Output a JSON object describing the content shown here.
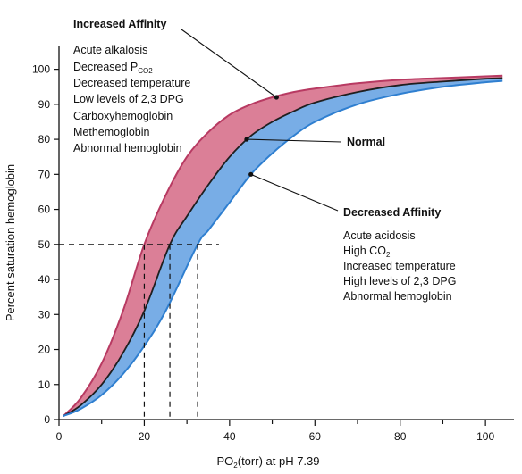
{
  "chart_data": {
    "type": "line",
    "xlabel_main": "PO",
    "xlabel_sub": "2",
    "xlabel_rest": "(torr) at pH 7.39",
    "ylabel": "Percent saturation hemoglobin",
    "xlim": [
      0,
      105
    ],
    "ylim": [
      0,
      105
    ],
    "x_ticks": [
      0,
      20,
      40,
      60,
      80,
      100
    ],
    "y_ticks": [
      0,
      10,
      20,
      30,
      40,
      50,
      60,
      70,
      80,
      90,
      100
    ],
    "grid": false,
    "p50_reference_y": 50,
    "p50_values": [
      20,
      26,
      32.5
    ],
    "series": [
      {
        "name": "Increased Affinity",
        "color": "#b83a62",
        "points": [
          [
            1,
            1
          ],
          [
            5,
            6
          ],
          [
            10,
            16
          ],
          [
            15,
            31
          ],
          [
            20,
            50
          ],
          [
            25,
            64
          ],
          [
            30,
            75
          ],
          [
            35,
            82
          ],
          [
            40,
            87
          ],
          [
            45,
            90
          ],
          [
            50,
            92
          ],
          [
            55,
            93.5
          ],
          [
            60,
            94.5
          ],
          [
            70,
            96
          ],
          [
            80,
            97
          ],
          [
            90,
            97.5
          ],
          [
            100,
            98
          ],
          [
            104,
            98.2
          ]
        ]
      },
      {
        "name": "Normal",
        "color": "#1f1f1f",
        "points": [
          [
            1,
            1
          ],
          [
            5,
            4
          ],
          [
            10,
            10
          ],
          [
            15,
            19
          ],
          [
            20,
            31
          ],
          [
            26,
            50
          ],
          [
            30,
            58
          ],
          [
            35,
            67
          ],
          [
            40,
            75
          ],
          [
            45,
            81
          ],
          [
            50,
            85
          ],
          [
            55,
            88
          ],
          [
            60,
            90.5
          ],
          [
            70,
            93.5
          ],
          [
            80,
            95.5
          ],
          [
            90,
            96.5
          ],
          [
            100,
            97.3
          ],
          [
            104,
            97.5
          ]
        ]
      },
      {
        "name": "Decreased Affinity",
        "color": "#2f7fd0",
        "points": [
          [
            1,
            1
          ],
          [
            5,
            3
          ],
          [
            10,
            7
          ],
          [
            15,
            13
          ],
          [
            20,
            21
          ],
          [
            25,
            31
          ],
          [
            32.5,
            50
          ],
          [
            35,
            54
          ],
          [
            40,
            62
          ],
          [
            45,
            70
          ],
          [
            50,
            76
          ],
          [
            55,
            81
          ],
          [
            60,
            85
          ],
          [
            70,
            90
          ],
          [
            80,
            93
          ],
          [
            90,
            95
          ],
          [
            100,
            96.3
          ],
          [
            104,
            96.7
          ]
        ]
      }
    ],
    "annotations": {
      "increased": {
        "title": "Increased Affinity",
        "items": [
          {
            "main": "Acute alkalosis"
          },
          {
            "main": "Decreased P",
            "sub": "CO2"
          },
          {
            "main": "Decreased temperature"
          },
          {
            "main": "Low levels of 2,3 DPG"
          },
          {
            "main": "Carboxyhemoglobin"
          },
          {
            "main": "Methemoglobin"
          },
          {
            "main": "Abnormal hemoglobin"
          }
        ]
      },
      "normal": {
        "title": "Normal"
      },
      "decreased": {
        "title": "Decreased Affinity",
        "items": [
          {
            "main": "Acute acidosis"
          },
          {
            "main": "High CO",
            "sub": "2"
          },
          {
            "main": "Increased temperature"
          },
          {
            "main": "High levels of 2,3 DPG"
          },
          {
            "main": "Abnormal hemoglobin"
          }
        ]
      }
    },
    "colors": {
      "increased_band": "#db7f97",
      "decreased_band": "#78ade6",
      "axis": "#111111"
    }
  }
}
